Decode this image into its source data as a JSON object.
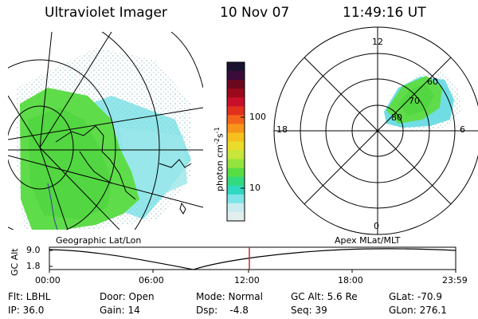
{
  "header": {
    "instrument": "Ultraviolet Imager",
    "date": "10 Nov 07",
    "time": "11:49:16 UT"
  },
  "colorbar": {
    "label": "photon cm",
    "label_sup1": "-2",
    "label_mid": "s",
    "label_sup2": "-1",
    "ticks": [
      "100",
      "10"
    ],
    "colors": [
      "#1b1230",
      "#3a0b3b",
      "#6b0820",
      "#9b0a1a",
      "#c8102a",
      "#e2301e",
      "#f3641a",
      "#f7951b",
      "#f5c21d",
      "#e9dc2a",
      "#c6e63a",
      "#94e33f",
      "#57dd44",
      "#33d97f",
      "#2fd9c0",
      "#7fe4e8",
      "#c9ecef",
      "#e2eeee"
    ]
  },
  "left_panel": {
    "caption": "Geographic Lat/Lon"
  },
  "right_panel": {
    "caption": "Apex MLat/MLT",
    "mlt_labels": {
      "top": "12",
      "bottom": "0",
      "left": "18",
      "right": "6"
    },
    "lat_labels": [
      "60",
      "70",
      "80"
    ]
  },
  "timeline": {
    "ylabel": "GC Alt",
    "y_ticks": [
      "9.0",
      "1.8"
    ],
    "x_ticks": [
      "00:00",
      "06:00",
      "12:00",
      "18:00",
      "23:59"
    ],
    "line_color": "#000000",
    "marker_color": "#c0282d"
  },
  "info": {
    "row1": {
      "flt": "Flt: LBHL",
      "door": "Door: Open",
      "mode": "Mode: Normal",
      "gc_alt": "GC Alt: 5.6 Re",
      "glat": "GLat: -70.9"
    },
    "row2": {
      "ip": "IP: 36.0",
      "gain": "Gain: 14",
      "dsp": "Dsp:    -4.8",
      "seq": "Seq: 39",
      "glon": "GLon: 276.1"
    }
  }
}
